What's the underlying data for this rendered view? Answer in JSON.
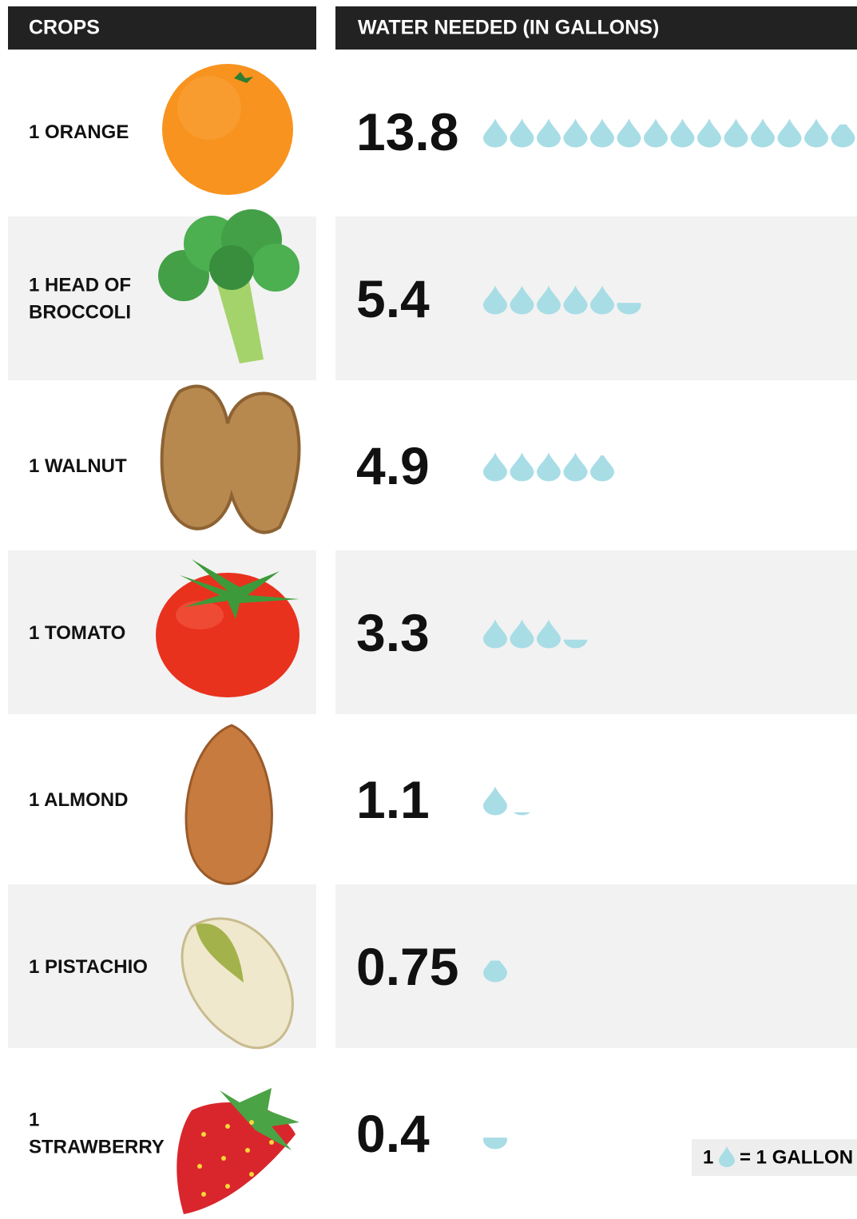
{
  "chart_data": {
    "type": "pictogram",
    "header": {
      "crops": "CROPS",
      "water": "WATER NEEDED (IN GALLONS)"
    },
    "categories": [
      "1 ORANGE",
      "1 HEAD OF BROCCOLI",
      "1 WALNUT",
      "1 TOMATO",
      "1 ALMOND",
      "1 PISTACHIO",
      "1 STRAWBERRY"
    ],
    "values": [
      13.8,
      5.4,
      4.9,
      3.3,
      1.1,
      0.75,
      0.4
    ],
    "color": "#a8dde6",
    "legend": {
      "count": "1",
      "text": "= 1 GALLON"
    }
  }
}
